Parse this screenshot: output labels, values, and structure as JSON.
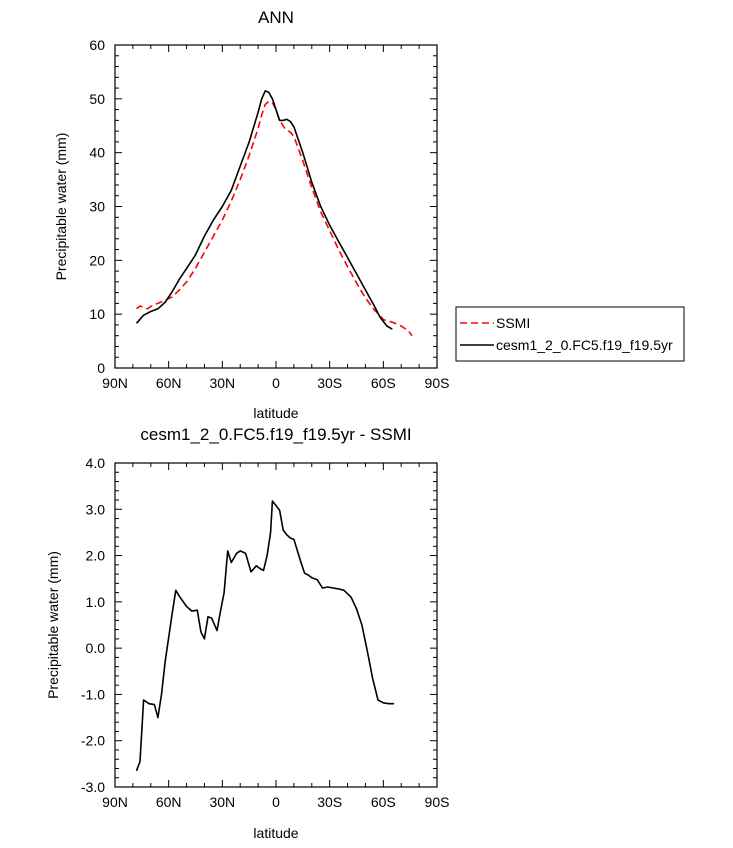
{
  "chart_data": [
    {
      "type": "line",
      "title": "ANN",
      "xlabel": "latitude",
      "ylabel": "Precipitable water (mm)",
      "xlim": [
        90,
        -90
      ],
      "ylim": [
        0,
        60
      ],
      "xticks": [
        90,
        60,
        30,
        0,
        -30,
        -60,
        -90
      ],
      "xtick_labels": [
        "90N",
        "60N",
        "30N",
        "0",
        "30S",
        "60S",
        "90S"
      ],
      "yticks": [
        0,
        10,
        20,
        30,
        40,
        50,
        60
      ],
      "ytick_labels": [
        "0",
        "10",
        "20",
        "30",
        "40",
        "50",
        "60"
      ],
      "legend": {
        "placement": "right, outside plot"
      },
      "series": [
        {
          "name": "SSMI",
          "color": "#ff0000",
          "dash": true,
          "x": [
            78,
            76,
            74,
            72,
            70,
            68,
            66,
            62,
            58,
            54,
            50,
            45,
            40,
            35,
            30,
            25,
            20,
            15,
            10,
            8,
            6,
            4,
            2,
            0,
            -2,
            -5,
            -8,
            -10,
            -15,
            -20,
            -25,
            -30,
            -35,
            -40,
            -45,
            -50,
            -55,
            -58,
            -60,
            -65,
            -70,
            -74,
            -76
          ],
          "y": [
            11.0,
            11.5,
            11.3,
            11.0,
            11.4,
            11.8,
            12.0,
            12.6,
            13.2,
            14.5,
            16.0,
            18.5,
            21.5,
            24.5,
            27.5,
            31.0,
            35.0,
            39.5,
            44.5,
            47.0,
            49.0,
            49.5,
            49.3,
            48.0,
            46.0,
            44.5,
            43.8,
            43.0,
            38.5,
            33.5,
            29.0,
            25.5,
            22.0,
            18.8,
            15.8,
            13.0,
            10.8,
            9.8,
            9.0,
            8.5,
            7.8,
            6.9,
            6.0
          ]
        },
        {
          "name": "cesm1_2_0.FC5.f19_f19.5yr",
          "color": "#000000",
          "dash": false,
          "x": [
            78,
            74,
            70,
            66,
            62,
            58,
            54,
            50,
            45,
            40,
            35,
            30,
            25,
            20,
            15,
            10,
            8,
            6,
            4,
            2,
            0,
            -2,
            -4,
            -6,
            -8,
            -10,
            -15,
            -20,
            -25,
            -30,
            -35,
            -40,
            -45,
            -50,
            -55,
            -58,
            -62,
            -65
          ],
          "y": [
            8.3,
            9.8,
            10.5,
            11.0,
            12.2,
            14.2,
            16.5,
            18.5,
            21.0,
            24.5,
            27.5,
            30.0,
            33.0,
            37.5,
            42.0,
            47.5,
            50.0,
            51.5,
            51.2,
            50.0,
            48.0,
            46.0,
            46.0,
            46.2,
            45.8,
            44.8,
            40.0,
            34.5,
            30.0,
            26.5,
            23.5,
            20.5,
            17.5,
            14.5,
            11.5,
            9.5,
            7.8,
            7.2
          ]
        }
      ]
    },
    {
      "type": "line",
      "title": "cesm1_2_0.FC5.f19_f19.5yr - SSMI",
      "xlabel": "latitude",
      "ylabel": "Precipitable water (mm)",
      "xlim": [
        90,
        -90
      ],
      "ylim": [
        -3,
        4
      ],
      "xticks": [
        90,
        60,
        30,
        0,
        -30,
        -60,
        -90
      ],
      "xtick_labels": [
        "90N",
        "60N",
        "30N",
        "0",
        "30S",
        "60S",
        "90S"
      ],
      "yticks": [
        -3,
        -2,
        -1,
        0,
        1,
        2,
        3,
        4
      ],
      "ytick_labels": [
        "-3.0",
        "-2.0",
        "-1.0",
        "0.0",
        "1.0",
        "2.0",
        "3.0",
        "4.0"
      ],
      "series": [
        {
          "color": "#000000",
          "dash": false,
          "x": [
            78,
            76,
            74,
            71,
            68,
            66,
            64,
            62,
            58,
            56,
            54,
            50,
            47,
            44,
            42,
            40,
            38,
            36,
            33,
            31,
            29,
            27,
            25,
            22,
            20,
            17,
            14,
            11,
            9,
            7,
            5,
            3,
            2,
            -2,
            -4,
            -6,
            -8,
            -10,
            -14,
            -16,
            -18,
            -20,
            -23,
            -26,
            -29,
            -32,
            -35,
            -38,
            -42,
            -45,
            -48,
            -51,
            -54,
            -57,
            -60,
            -63,
            -66
          ],
          "y": [
            -2.65,
            -2.45,
            -1.12,
            -1.2,
            -1.22,
            -1.5,
            -1.0,
            -0.3,
            0.75,
            1.25,
            1.12,
            0.9,
            0.8,
            0.82,
            0.35,
            0.2,
            0.68,
            0.65,
            0.38,
            0.8,
            1.2,
            2.1,
            1.85,
            2.05,
            2.1,
            2.05,
            1.65,
            1.78,
            1.72,
            1.68,
            2.0,
            2.5,
            3.18,
            2.98,
            2.55,
            2.45,
            2.38,
            2.35,
            1.85,
            1.62,
            1.58,
            1.52,
            1.48,
            1.3,
            1.32,
            1.3,
            1.28,
            1.25,
            1.1,
            0.85,
            0.5,
            -0.05,
            -0.65,
            -1.12,
            -1.18,
            -1.2,
            -1.2
          ]
        }
      ]
    }
  ]
}
